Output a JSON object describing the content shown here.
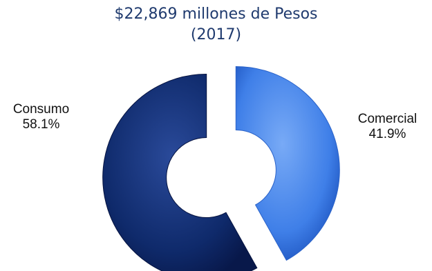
{
  "chart_data": {
    "type": "pie",
    "title": "$22,869 millones de Pesos",
    "subtitle": "(2017)",
    "slices": [
      {
        "label": "Consumo",
        "value": 58.1,
        "display": "58.1%",
        "color": "#0f2a6b"
      },
      {
        "label": "Comercial",
        "value": 41.9,
        "display": "41.9%",
        "color": "#3f7fe8"
      }
    ],
    "donut": true,
    "exploded": true,
    "legend": "none"
  }
}
